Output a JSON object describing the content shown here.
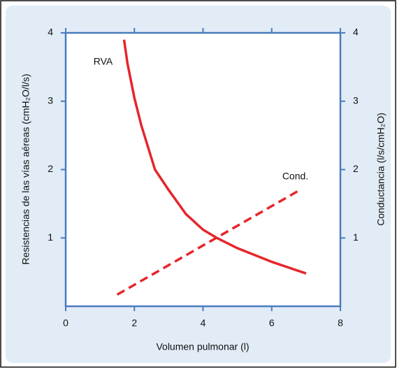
{
  "chart_data": {
    "type": "line",
    "xlabel": "Volumen pulmonar (l)",
    "ylabel": "Resistencias de las vías aéreas (cmH₂O/l/s)",
    "y2label": "Conductancia (l/s/cmH₂O)",
    "xlim": [
      0,
      8
    ],
    "xticks": [
      0,
      2,
      4,
      6,
      8
    ],
    "ylim": [
      0,
      4
    ],
    "yticks": [
      1,
      2,
      3,
      4
    ],
    "y2lim": [
      0,
      4
    ],
    "y2ticks": [
      1,
      2,
      3,
      4
    ],
    "grid": false,
    "series": [
      {
        "name": "RVA",
        "color": "#e5262b",
        "line_style": "solid",
        "x": [
          1.7,
          1.8,
          2.0,
          2.2,
          2.6,
          3.0,
          3.5,
          4.0,
          4.4,
          5.0,
          6.0,
          7.0
        ],
        "values": [
          3.9,
          3.55,
          3.05,
          2.65,
          2.0,
          1.7,
          1.35,
          1.12,
          1.0,
          0.85,
          0.65,
          0.48
        ]
      },
      {
        "name": "Cond.",
        "color": "#e5262b",
        "line_style": "dashed",
        "axis": "y2",
        "x": [
          1.5,
          6.85
        ],
        "values": [
          0.17,
          1.71
        ]
      }
    ]
  }
}
